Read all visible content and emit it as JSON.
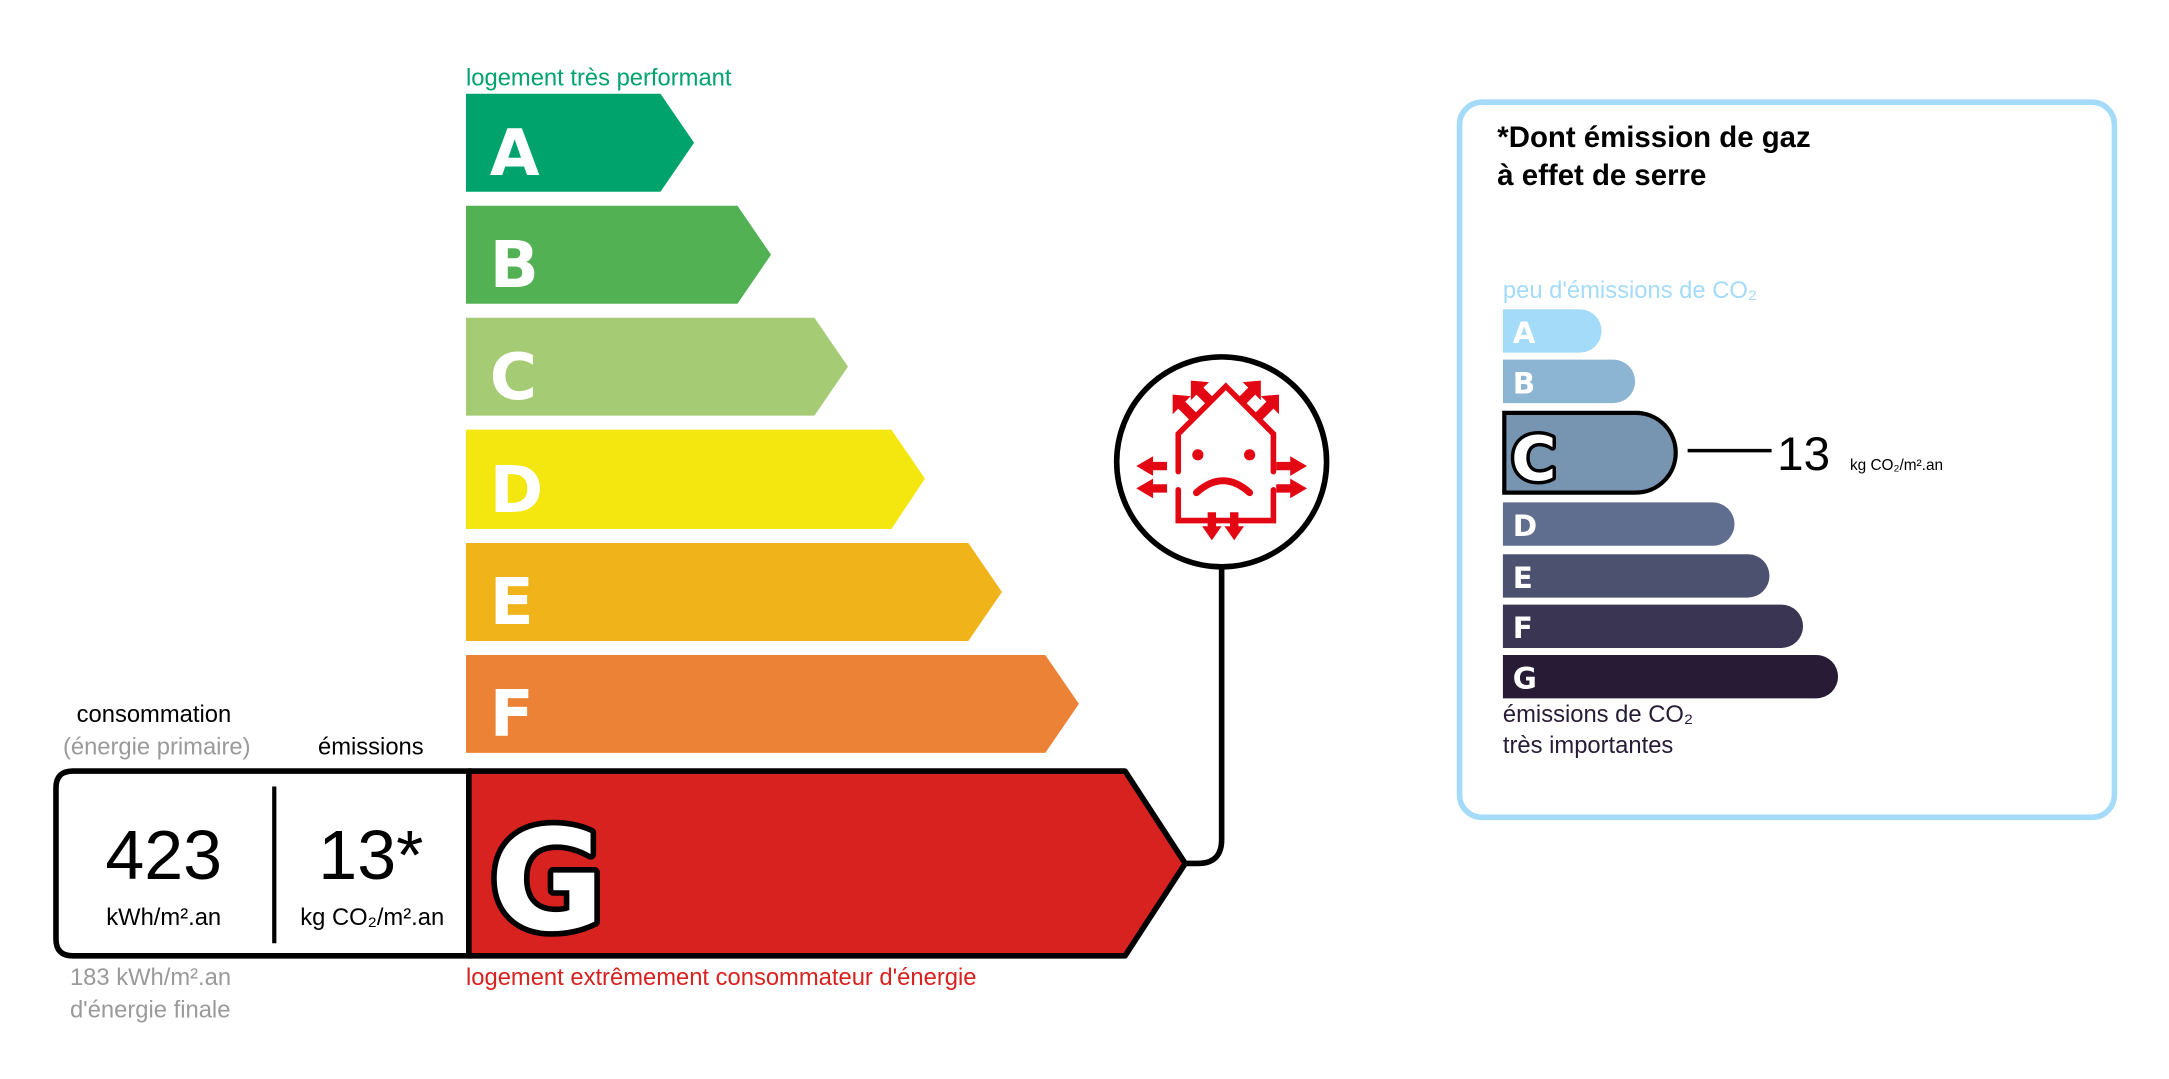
{
  "dpe": {
    "top_label": "logement très performant",
    "bottom_label": "logement extrêmement consommateur d'énergie",
    "classes": [
      {
        "letter": "A",
        "color": "#00a36c"
      },
      {
        "letter": "B",
        "color": "#52b153"
      },
      {
        "letter": "C",
        "color": "#a5cc74"
      },
      {
        "letter": "D",
        "color": "#f4e70f"
      },
      {
        "letter": "E",
        "color": "#f0b41a"
      },
      {
        "letter": "F",
        "color": "#eb8235"
      },
      {
        "letter": "G",
        "color": "#d7221f"
      }
    ],
    "current_class": "G",
    "consumption_header": "consommation",
    "consumption_subheader": "(énergie primaire)",
    "emissions_header": "émissions",
    "consumption_value": "423",
    "consumption_unit": "kWh/m².an",
    "emissions_value": "13*",
    "emissions_unit": "kg CO₂/m².an",
    "final_energy_value": "183 kWh/m².an",
    "final_energy_label": "d'énergie finale",
    "icon": "house-heat-loss-sad-face-icon"
  },
  "ges": {
    "title_line1": "*Dont émission de gaz",
    "title_line2": "à effet de serre",
    "top_label": "peu d'émissions de CO₂",
    "bottom_label_line1": "émissions de CO₂",
    "bottom_label_line2": "très importantes",
    "classes": [
      {
        "letter": "A",
        "color": "#a4dbf8"
      },
      {
        "letter": "B",
        "color": "#8cb4d3"
      },
      {
        "letter": "C",
        "color": "#7794b1"
      },
      {
        "letter": "D",
        "color": "#5f6e8e"
      },
      {
        "letter": "E",
        "color": "#4d5170"
      },
      {
        "letter": "F",
        "color": "#393552"
      },
      {
        "letter": "G",
        "color": "#281b35"
      }
    ],
    "current_class": "C",
    "value": "13",
    "unit": "kg CO₂/m².an",
    "border_color": "#a4dbf8"
  }
}
